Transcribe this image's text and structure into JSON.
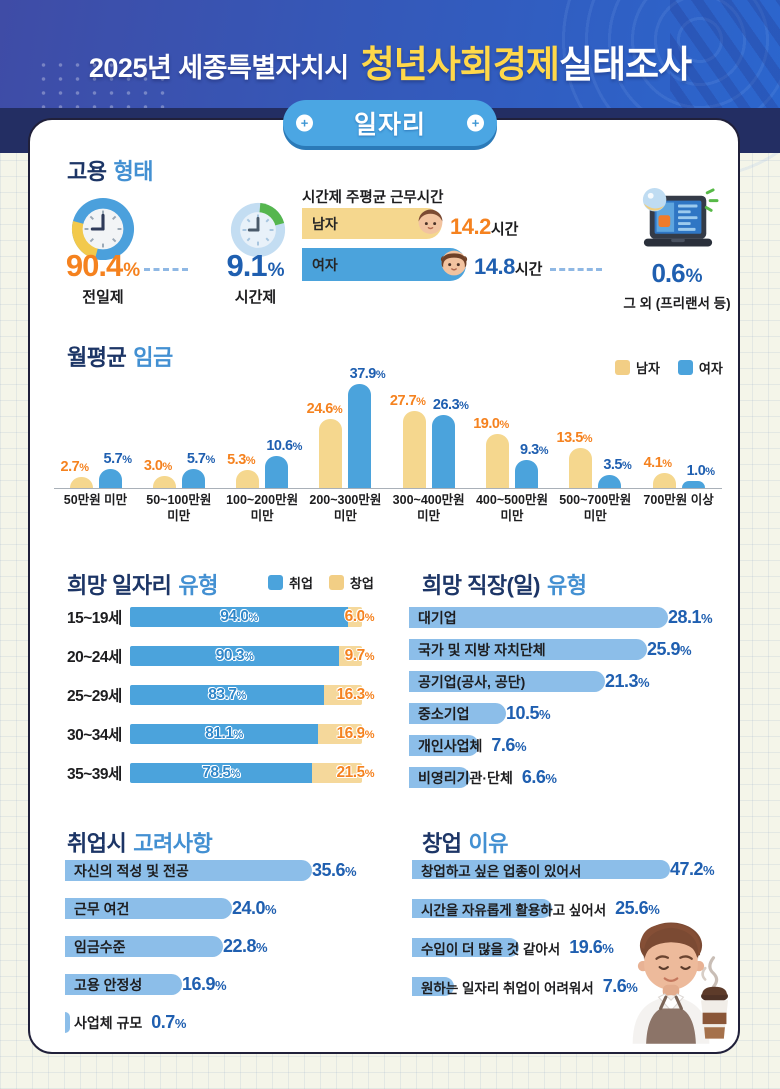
{
  "header": {
    "title_prefix": "2025년 세종특별자치시",
    "title_highlight": "청년사회경제",
    "title_suffix": "실태조사",
    "badge": "일자리"
  },
  "icons": {
    "screw_glyph": "+"
  },
  "employment": {
    "title_dark": "고용",
    "title_light": "형태",
    "full_time": {
      "value": "90.4",
      "unit": "%",
      "label": "전일제"
    },
    "part_time": {
      "value": "9.1",
      "unit": "%",
      "label": "시간제"
    },
    "other": {
      "value": "0.6",
      "unit": "%",
      "label": "그 외 (프리랜서 등)"
    },
    "hours": {
      "title": "시간제 주평균 근무시간",
      "rows": [
        {
          "label": "남자",
          "value": "14.2",
          "unit": "시간"
        },
        {
          "label": "여자",
          "value": "14.8",
          "unit": "시간"
        }
      ]
    }
  },
  "wage": {
    "title_dark": "월평균",
    "title_light": "임금",
    "legend": [
      "남자",
      "여자"
    ]
  },
  "hope_job": {
    "title_dark": "희망 일자리",
    "title_light": "유형",
    "legend": [
      "취업",
      "창업"
    ]
  },
  "hope_workplace": {
    "title_dark": "희망 직장(일)",
    "title_light": "유형"
  },
  "considerations": {
    "title_dark": "취업시",
    "title_light": "고려사항"
  },
  "startup": {
    "title_dark": "창업",
    "title_light": "이유"
  },
  "chart_data": [
    {
      "id": "employment_type",
      "type": "pie",
      "title": "고용형태",
      "unit": "%",
      "categories": [
        "전일제",
        "시간제",
        "그 외 (프리랜서 등)"
      ],
      "values": [
        90.4,
        9.1,
        0.6
      ]
    },
    {
      "id": "parttime_hours",
      "type": "bar",
      "title": "시간제 주평균 근무시간",
      "unit": "시간",
      "categories": [
        "남자",
        "여자"
      ],
      "values": [
        14.2,
        14.8
      ]
    },
    {
      "id": "monthly_wage",
      "type": "bar",
      "title": "월평균 임금",
      "unit": "%",
      "ylim": [
        0,
        40
      ],
      "legend_position": "top-right",
      "grid": false,
      "categories": [
        "50만원 미만",
        "50~100만원 미만",
        "100~200만원 미만",
        "200~300만원 미만",
        "300~400만원 미만",
        "400~500만원 미만",
        "500~700만원 미만",
        "700만원 이상"
      ],
      "categories_lines": [
        [
          "50만원 미만"
        ],
        [
          "50~100만원",
          "미만"
        ],
        [
          "100~200만원",
          "미만"
        ],
        [
          "200~300만원",
          "미만"
        ],
        [
          "300~400만원",
          "미만"
        ],
        [
          "400~500만원",
          "미만"
        ],
        [
          "500~700만원",
          "미만"
        ],
        [
          "700만원 이상"
        ]
      ],
      "series": [
        {
          "name": "남자",
          "color": "#F5D78E",
          "values": [
            2.7,
            3.0,
            5.3,
            24.6,
            27.7,
            19.0,
            13.5,
            4.1
          ]
        },
        {
          "name": "여자",
          "color": "#4BA3DC",
          "values": [
            5.7,
            5.7,
            10.6,
            37.9,
            26.3,
            9.3,
            3.5,
            1.0
          ]
        }
      ]
    },
    {
      "id": "hope_job_type",
      "type": "bar",
      "subtype": "stacked-horizontal",
      "title": "희망 일자리 유형",
      "unit": "%",
      "categories": [
        "15~19세",
        "20~24세",
        "25~29세",
        "30~34세",
        "35~39세"
      ],
      "series": [
        {
          "name": "취업",
          "color": "#4BA3DC",
          "values": [
            94.0,
            90.3,
            83.7,
            81.1,
            78.5
          ]
        },
        {
          "name": "창업",
          "color": "#F5D89B",
          "values": [
            6.0,
            9.7,
            16.3,
            16.9,
            21.5
          ]
        }
      ]
    },
    {
      "id": "hope_workplace",
      "type": "bar",
      "subtype": "horizontal",
      "title": "희망 직장(일) 유형",
      "unit": "%",
      "categories": [
        "대기업",
        "국가 및 지방 자치단체",
        "공기업(공사, 공단)",
        "중소기업",
        "개인사업체",
        "비영리기관·단체"
      ],
      "values": [
        28.1,
        25.9,
        21.3,
        10.5,
        7.6,
        6.6
      ]
    },
    {
      "id": "job_considerations",
      "type": "bar",
      "subtype": "horizontal",
      "title": "취업시 고려사항",
      "unit": "%",
      "categories": [
        "자신의 적성 및 전공",
        "근무 여건",
        "임금수준",
        "고용 안정성",
        "사업체 규모"
      ],
      "values": [
        35.6,
        24.0,
        22.8,
        16.9,
        0.7
      ]
    },
    {
      "id": "startup_reasons",
      "type": "bar",
      "subtype": "horizontal",
      "title": "창업 이유",
      "unit": "%",
      "categories": [
        "창업하고 싶은 업종이 있어서",
        "시간을 자유롭게 활용하고 싶어서",
        "수입이 더 많을 것 같아서",
        "원하는 일자리 취업이 어려워서"
      ],
      "values": [
        47.2,
        25.6,
        19.6,
        7.6
      ]
    }
  ]
}
